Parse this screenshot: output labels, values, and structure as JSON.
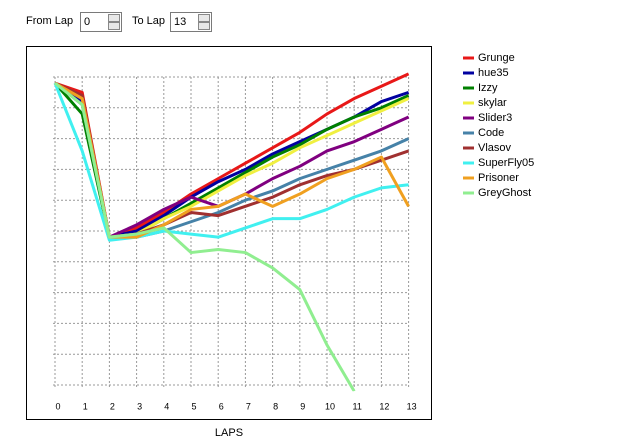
{
  "controls": {
    "from_label": "From Lap",
    "from_value": 0,
    "to_label": "To Lap",
    "to_value": 13
  },
  "chart_data": {
    "type": "line",
    "xlabel": "LAPS",
    "x": [
      0,
      1,
      2,
      3,
      4,
      5,
      6,
      7,
      8,
      9,
      10,
      11,
      12,
      13
    ],
    "xlim": [
      0,
      13
    ],
    "xticks": [
      0,
      1,
      2,
      3,
      4,
      5,
      6,
      7,
      8,
      9,
      10,
      11,
      12,
      13
    ],
    "ylim": [
      -0.2,
      10.2
    ],
    "yticks": [
      0,
      1,
      2,
      3,
      4,
      5,
      6,
      7,
      8,
      9,
      10
    ],
    "grid": true,
    "legend": "right",
    "series": [
      {
        "name": "Grunge",
        "color": "#e81818",
        "values": [
          9.8,
          9.5,
          4.8,
          5.1,
          5.6,
          6.2,
          6.7,
          7.2,
          7.7,
          8.2,
          8.8,
          9.3,
          9.7,
          10.1
        ]
      },
      {
        "name": "hue35",
        "color": "#0000a0",
        "values": [
          9.8,
          9.2,
          4.8,
          5.0,
          5.5,
          6.1,
          6.6,
          7.0,
          7.5,
          7.9,
          8.3,
          8.7,
          9.2,
          9.5
        ]
      },
      {
        "name": "Izzy",
        "color": "#008000",
        "values": [
          9.8,
          8.8,
          4.8,
          4.9,
          5.4,
          5.9,
          6.4,
          6.9,
          7.4,
          7.8,
          8.3,
          8.7,
          9.0,
          9.4
        ]
      },
      {
        "name": "skylar",
        "color": "#f0f040",
        "values": [
          9.8,
          9.3,
          4.8,
          4.9,
          5.4,
          5.8,
          6.3,
          6.8,
          7.2,
          7.7,
          8.1,
          8.5,
          8.9,
          9.3
        ]
      },
      {
        "name": "Slider3",
        "color": "#800080",
        "values": [
          9.8,
          9.3,
          4.8,
          5.2,
          5.7,
          6.1,
          5.8,
          6.2,
          6.7,
          7.1,
          7.6,
          7.9,
          8.3,
          8.7
        ]
      },
      {
        "name": "Code",
        "color": "#4682a8",
        "values": [
          9.8,
          9.1,
          4.8,
          4.8,
          5.0,
          5.3,
          5.6,
          6.0,
          6.3,
          6.7,
          7.0,
          7.3,
          7.6,
          8.0
        ]
      },
      {
        "name": "Vlasov",
        "color": "#a03030",
        "values": [
          9.8,
          9.4,
          4.8,
          4.9,
          5.2,
          5.6,
          5.5,
          5.8,
          6.1,
          6.5,
          6.8,
          7.0,
          7.3,
          7.6
        ]
      },
      {
        "name": "SuperFly05",
        "color": "#40f0f0",
        "values": [
          9.8,
          7.6,
          4.7,
          4.8,
          5.0,
          4.9,
          4.8,
          5.1,
          5.4,
          5.4,
          5.7,
          6.1,
          6.4,
          6.5
        ]
      },
      {
        "name": "Prisoner",
        "color": "#f0a020",
        "values": [
          9.8,
          9.3,
          4.8,
          4.8,
          5.2,
          5.7,
          5.8,
          6.2,
          5.8,
          6.2,
          6.7,
          7.0,
          7.4,
          5.8
        ]
      },
      {
        "name": "GreyGhost",
        "color": "#90ee90",
        "values": [
          9.8,
          9.1,
          4.8,
          4.9,
          5.1,
          4.3,
          4.4,
          4.3,
          3.8,
          3.1,
          1.3,
          -0.2,
          null,
          null
        ]
      }
    ]
  }
}
